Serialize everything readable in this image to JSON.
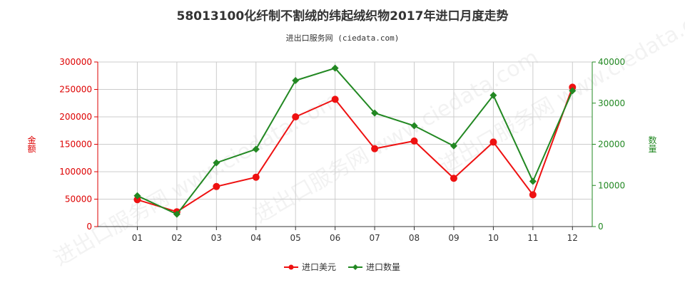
{
  "chart_data": {
    "type": "line",
    "title": "58013100化纤制不割绒的纬起绒织物2017年进口月度走势",
    "subtitle": "进出口服务网 (ciedata.com)",
    "watermark": "进出口服务网 www.ciedata.com",
    "categories": [
      "01",
      "02",
      "03",
      "04",
      "05",
      "06",
      "07",
      "08",
      "09",
      "10",
      "11",
      "12"
    ],
    "y_left": {
      "label": "金额",
      "ylim": [
        0,
        300000
      ],
      "ticks": [
        0,
        50000,
        100000,
        150000,
        200000,
        250000,
        300000
      ],
      "color": "#dd0000"
    },
    "y_right": {
      "label": "数量",
      "ylim": [
        0,
        40000
      ],
      "ticks": [
        0,
        10000,
        20000,
        30000,
        40000
      ],
      "color": "#228822"
    },
    "grid": true,
    "legend_position": "bottom",
    "series": [
      {
        "name": "进口美元",
        "axis": "left",
        "color": "#ee1111",
        "marker": "circle",
        "values": [
          49000,
          27000,
          73000,
          90000,
          200000,
          232000,
          142000,
          156000,
          88000,
          154000,
          58000,
          254000
        ]
      },
      {
        "name": "进口数量",
        "axis": "right",
        "color": "#228822",
        "marker": "diamond",
        "values": [
          7500,
          3000,
          15500,
          18800,
          35500,
          38500,
          27600,
          24500,
          19600,
          31900,
          11000,
          33000
        ]
      }
    ]
  }
}
